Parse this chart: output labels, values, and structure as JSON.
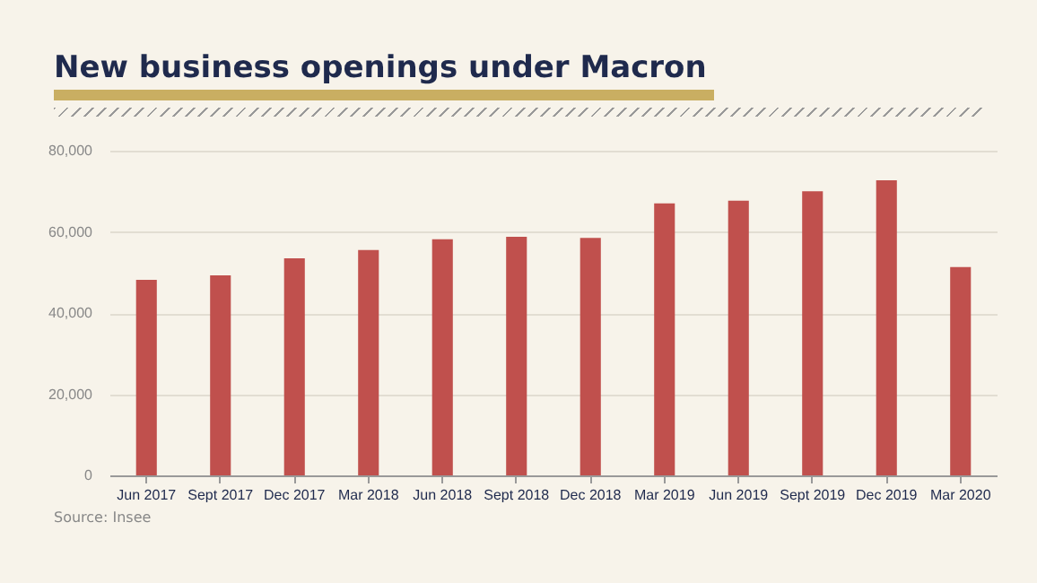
{
  "chart_data": {
    "type": "bar",
    "title": "New business openings under Macron",
    "categories": [
      "Jun 2017",
      "Sept 2017",
      "Dec 2017",
      "Mar 2018",
      "Jun 2018",
      "Sept 2018",
      "Dec 2018",
      "Mar 2019",
      "Jun 2019",
      "Sept 2019",
      "Dec 2019",
      "Mar 2020"
    ],
    "values": [
      48200,
      49300,
      53500,
      55500,
      58200,
      58800,
      58500,
      67000,
      67700,
      70000,
      72700,
      51300
    ],
    "color": "#c0504d",
    "ylim": [
      0,
      80000
    ],
    "yticks": [
      {
        "value": 0,
        "label": "0"
      },
      {
        "value": 20000,
        "label": "20,000"
      },
      {
        "value": 40000,
        "label": "40,000"
      },
      {
        "value": 60000,
        "label": "60,000"
      },
      {
        "value": 80000,
        "label": "80,000"
      }
    ],
    "grid": "y",
    "annotations": [
      "Source: Insee"
    ]
  }
}
